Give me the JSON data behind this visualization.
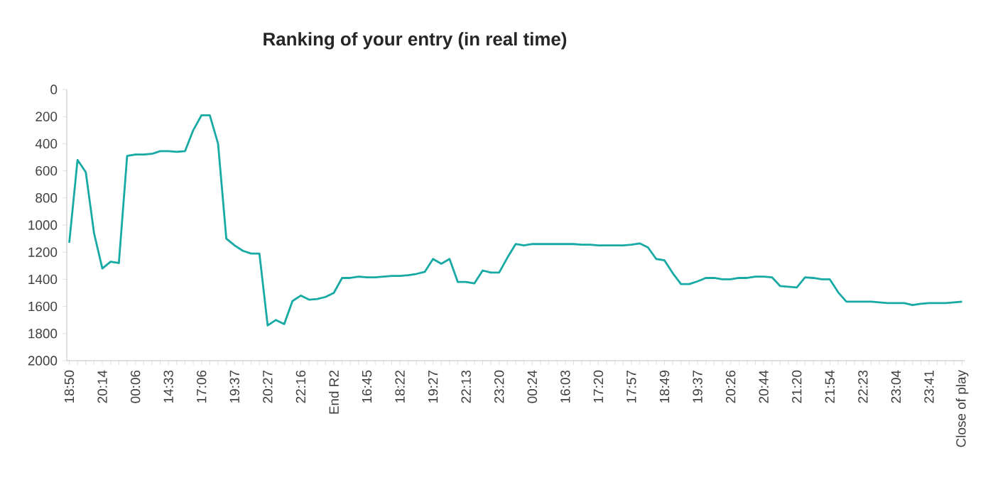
{
  "chart_data": {
    "type": "line",
    "title": "Ranking of your entry (in real time)",
    "categories": [
      "18:50",
      null,
      null,
      null,
      "20:14",
      null,
      null,
      null,
      "00:06",
      null,
      null,
      null,
      "14:33",
      null,
      null,
      null,
      "17:06",
      null,
      null,
      null,
      "19:37",
      null,
      null,
      null,
      "20:27",
      null,
      null,
      null,
      "22:16",
      null,
      null,
      null,
      "End R2",
      null,
      null,
      null,
      "16:45",
      null,
      null,
      null,
      "18:22",
      null,
      null,
      null,
      "19:27",
      null,
      null,
      null,
      "22:13",
      null,
      null,
      null,
      "23:20",
      null,
      null,
      null,
      "00:24",
      null,
      null,
      null,
      "16:03",
      null,
      null,
      null,
      "17:20",
      null,
      null,
      null,
      "17:57",
      null,
      null,
      null,
      "18:49",
      null,
      null,
      null,
      "19:37",
      null,
      null,
      null,
      "20:26",
      null,
      null,
      null,
      "20:44",
      null,
      null,
      null,
      "21:20",
      null,
      null,
      null,
      "21:54",
      null,
      null,
      null,
      "22:23",
      null,
      null,
      null,
      "23:04",
      null,
      null,
      null,
      "23:41",
      null,
      null,
      null,
      "Close of play"
    ],
    "values": [
      1130,
      520,
      610,
      1060,
      1320,
      1270,
      1280,
      490,
      480,
      480,
      475,
      455,
      455,
      460,
      455,
      300,
      190,
      190,
      400,
      1100,
      1150,
      1190,
      1210,
      1210,
      1740,
      1700,
      1730,
      1560,
      1520,
      1550,
      1545,
      1530,
      1500,
      1390,
      1390,
      1380,
      1385,
      1385,
      1380,
      1375,
      1375,
      1370,
      1360,
      1345,
      1250,
      1285,
      1250,
      1420,
      1420,
      1430,
      1335,
      1350,
      1350,
      1240,
      1140,
      1150,
      1140,
      1140,
      1140,
      1140,
      1140,
      1140,
      1145,
      1145,
      1150,
      1150,
      1150,
      1150,
      1145,
      1135,
      1165,
      1250,
      1260,
      1355,
      1435,
      1435,
      1415,
      1390,
      1390,
      1400,
      1400,
      1390,
      1390,
      1380,
      1380,
      1385,
      1450,
      1455,
      1460,
      1385,
      1390,
      1400,
      1400,
      1495,
      1565,
      1565,
      1565,
      1565,
      1570,
      1575,
      1575,
      1575,
      1590,
      1580,
      1575,
      1575,
      1575,
      1570,
      1565
    ],
    "color": "#17a9a3",
    "marker": "none",
    "ylim": [
      2000,
      0
    ],
    "yticks": [
      0,
      200,
      400,
      600,
      800,
      1000,
      1200,
      1400,
      1600,
      1800,
      2000
    ]
  }
}
